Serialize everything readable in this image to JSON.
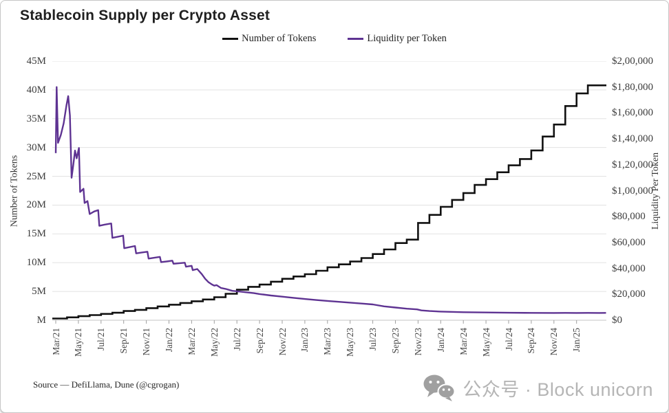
{
  "title": "Stablecoin Supply per Crypto Asset",
  "legend": [
    {
      "label": "Number of Tokens",
      "color": "#111111"
    },
    {
      "label": "Liquidity per Token",
      "color": "#5E3392"
    }
  ],
  "source_note": "Source — DefiLlama, Dune (@cgrogan)",
  "watermark": {
    "icon": "wechat-icon",
    "text": "公众号 · Block unicorn"
  },
  "colors": {
    "series_black": "#111111",
    "series_purple": "#5E3392",
    "gridline": "#e2e2e2",
    "axis_baseline": "#c4c4c4",
    "tick": "#9f9f9f"
  },
  "chart_data": {
    "type": "line",
    "title": "Stablecoin Supply per Crypto Asset",
    "grid": "horizontal",
    "legend_position": "top-center",
    "x_axis": {
      "unit": "months since Mar/21",
      "tick_interval_months": 2,
      "tick_labels": [
        "Mar/21",
        "May/21",
        "Jul/21",
        "Sep/21",
        "Nov/21",
        "Jan/22",
        "Mar/22",
        "May/22",
        "Jul/22",
        "Sep/22",
        "Nov/22",
        "Jan/23",
        "Mar/23",
        "May/23",
        "Jul/23",
        "Sep/23",
        "Nov/23",
        "Jan/24",
        "Mar/24",
        "May/24",
        "Jul/24",
        "Sep/24",
        "Nov/24",
        "Jan/25"
      ],
      "data_extends_to_month": 48.6
    },
    "left_axis": {
      "label": "Number of Tokens",
      "min": 0,
      "max_millions": 45,
      "tick_labels": [
        "45M",
        "40M",
        "35M",
        "30M",
        "25M",
        "20M",
        "15M",
        "10M",
        "5M",
        "M"
      ]
    },
    "right_axis": {
      "label": "Liquidity Per Token",
      "min": 0,
      "max": 200000,
      "tick_labels": [
        "$2,00,000",
        "$1,80,000",
        "$1,60,000",
        "$1,40,000",
        "$1,20,000",
        "$1,00,000",
        "$80,000",
        "$60,000",
        "$40,000",
        "$20,000",
        "$0"
      ]
    },
    "series": [
      {
        "name": "Number of Tokens",
        "axis": "left",
        "color": "#111111",
        "line_style": "step",
        "unit": "millions of tokens",
        "month_start": 0,
        "month_step": 1,
        "values_millions": [
          0.3,
          0.5,
          0.7,
          0.9,
          1.1,
          1.3,
          1.6,
          1.8,
          2.1,
          2.4,
          2.7,
          3.0,
          3.3,
          3.6,
          4.0,
          4.6,
          5.3,
          5.8,
          6.2,
          6.7,
          7.2,
          7.6,
          8.0,
          8.6,
          9.2,
          9.7,
          10.2,
          10.8,
          11.5,
          12.3,
          13.4,
          14.0,
          16.9,
          18.3,
          19.7,
          20.9,
          22.1,
          23.5,
          24.5,
          25.7,
          26.9,
          28.0,
          29.5,
          31.9,
          34.0,
          37.2,
          39.4,
          40.8,
          40.8
        ]
      },
      {
        "name": "Liquidity per Token",
        "axis": "right",
        "color": "#5E3392",
        "line_style": "line",
        "unit": "USD per token",
        "points_month_usd": [
          [
            0,
            129000
          ],
          [
            0.08,
            180000
          ],
          [
            0.2,
            137000
          ],
          [
            0.45,
            143000
          ],
          [
            0.7,
            152000
          ],
          [
            0.95,
            166000
          ],
          [
            1.1,
            173000
          ],
          [
            1.25,
            158000
          ],
          [
            1.4,
            110000
          ],
          [
            1.55,
            120000
          ],
          [
            1.7,
            131000
          ],
          [
            1.85,
            125000
          ],
          [
            2.05,
            133000
          ],
          [
            2.15,
            99000
          ],
          [
            2.45,
            101500
          ],
          [
            2.55,
            90500
          ],
          [
            2.8,
            92000
          ],
          [
            3.0,
            82000
          ],
          [
            3.4,
            84000
          ],
          [
            3.75,
            85000
          ],
          [
            3.85,
            72900
          ],
          [
            4.3,
            73800
          ],
          [
            4.9,
            74700
          ],
          [
            5.0,
            63600
          ],
          [
            5.5,
            64500
          ],
          [
            5.95,
            65300
          ],
          [
            6.05,
            55600
          ],
          [
            6.5,
            56400
          ],
          [
            7.0,
            57300
          ],
          [
            7.1,
            51600
          ],
          [
            7.6,
            52300
          ],
          [
            8.1,
            52900
          ],
          [
            8.2,
            47600
          ],
          [
            8.7,
            48200
          ],
          [
            9.2,
            48900
          ],
          [
            9.3,
            44900
          ],
          [
            9.8,
            45400
          ],
          [
            10.3,
            46000
          ],
          [
            10.4,
            43600
          ],
          [
            10.9,
            44000
          ],
          [
            11.4,
            44400
          ],
          [
            11.5,
            41300
          ],
          [
            12.0,
            42000
          ],
          [
            12.1,
            38700
          ],
          [
            12.5,
            39500
          ],
          [
            12.9,
            35600
          ],
          [
            13.2,
            32000
          ],
          [
            13.5,
            29300
          ],
          [
            13.8,
            27600
          ],
          [
            14.0,
            26700
          ],
          [
            14.2,
            27100
          ],
          [
            14.6,
            24900
          ],
          [
            15.0,
            24200
          ],
          [
            15.6,
            22700
          ],
          [
            16.2,
            22200
          ],
          [
            16.8,
            21600
          ],
          [
            17.5,
            20900
          ],
          [
            18.0,
            20200
          ],
          [
            19.0,
            19100
          ],
          [
            20.0,
            18200
          ],
          [
            21.0,
            17300
          ],
          [
            22.0,
            16400
          ],
          [
            23.0,
            15600
          ],
          [
            24.0,
            14900
          ],
          [
            25.0,
            14200
          ],
          [
            26.0,
            13600
          ],
          [
            27.0,
            12900
          ],
          [
            28.0,
            12200
          ],
          [
            29.0,
            10700
          ],
          [
            30.0,
            9800
          ],
          [
            31.0,
            8900
          ],
          [
            31.9,
            8400
          ],
          [
            32.3,
            7600
          ],
          [
            33.0,
            7100
          ],
          [
            34.0,
            6700
          ],
          [
            36.0,
            6200
          ],
          [
            38.0,
            6000
          ],
          [
            40.0,
            5800
          ],
          [
            42.0,
            5700
          ],
          [
            44.0,
            5600
          ],
          [
            45.0,
            5700
          ],
          [
            46.0,
            5600
          ],
          [
            47.0,
            5700
          ],
          [
            48.0,
            5600
          ],
          [
            48.6,
            5650
          ]
        ]
      }
    ]
  }
}
